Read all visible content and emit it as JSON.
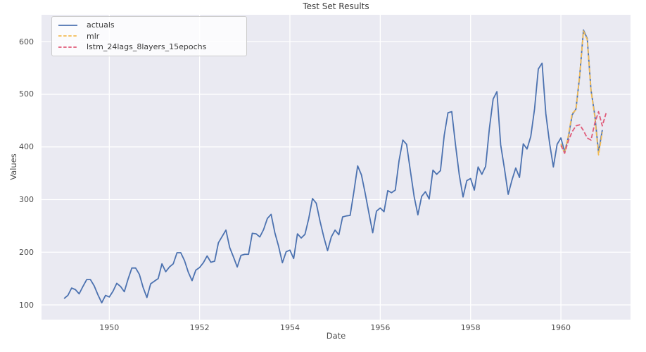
{
  "chart_data": {
    "type": "line",
    "title": "Test Set Results",
    "xlabel": "Date",
    "ylabel": "Values",
    "grid": true,
    "legend_position": "upper left",
    "colors": {
      "plot_background": "#eaeaf2",
      "grid": "#ffffff",
      "tick_text": "#4d4d4d"
    },
    "x_axis": {
      "unit": "month",
      "start_year": 1949,
      "ticks": [
        1950,
        1952,
        1954,
        1956,
        1958,
        1960
      ],
      "domain_months": [
        -6,
        150.5
      ]
    },
    "y_axis": {
      "ticks": [
        100,
        200,
        300,
        400,
        500,
        600
      ],
      "lim": [
        72,
        651
      ]
    },
    "series": [
      {
        "name": "actuals",
        "color": "#4c72b0",
        "line_style": "solid",
        "start_month_index": 0,
        "start_label": "1949-01",
        "values": [
          112,
          118,
          132,
          129,
          121,
          135,
          148,
          148,
          136,
          119,
          104,
          118,
          115,
          126,
          141,
          135,
          125,
          149,
          170,
          170,
          158,
          133,
          114,
          140,
          145,
          150,
          178,
          163,
          172,
          178,
          199,
          199,
          184,
          162,
          146,
          166,
          171,
          180,
          193,
          181,
          183,
          218,
          230,
          242,
          209,
          191,
          172,
          194,
          196,
          196,
          236,
          235,
          229,
          243,
          264,
          272,
          237,
          211,
          180,
          201,
          204,
          188,
          235,
          227,
          234,
          264,
          302,
          293,
          259,
          229,
          203,
          229,
          242,
          233,
          267,
          269,
          270,
          315,
          364,
          347,
          312,
          274,
          237,
          278,
          284,
          277,
          317,
          313,
          318,
          374,
          413,
          405,
          355,
          306,
          271,
          306,
          315,
          301,
          356,
          348,
          355,
          422,
          465,
          467,
          404,
          347,
          305,
          336,
          340,
          318,
          362,
          348,
          363,
          435,
          491,
          505,
          404,
          359,
          310,
          337,
          360,
          342,
          406,
          396,
          420,
          472,
          548,
          559,
          463,
          407,
          362,
          405,
          417,
          391,
          419,
          461,
          472,
          535,
          622,
          606,
          508,
          461,
          390,
          432
        ]
      },
      {
        "name": "mlr",
        "color": "#f3bc55",
        "line_style": "dashed",
        "start_month_index": 132,
        "start_label": "1960-01",
        "values": [
          406,
          388,
          422,
          464,
          470,
          537,
          620,
          604,
          507,
          458,
          385,
          428
        ]
      },
      {
        "name": "lstm_24lags_8layers_15epochs",
        "color": "#e05c7a",
        "line_style": "dashed",
        "start_month_index": 132,
        "start_label": "1960-01",
        "values": [
          403,
          388,
          412,
          429,
          440,
          442,
          431,
          417,
          413,
          445,
          467,
          440,
          464
        ]
      }
    ]
  }
}
